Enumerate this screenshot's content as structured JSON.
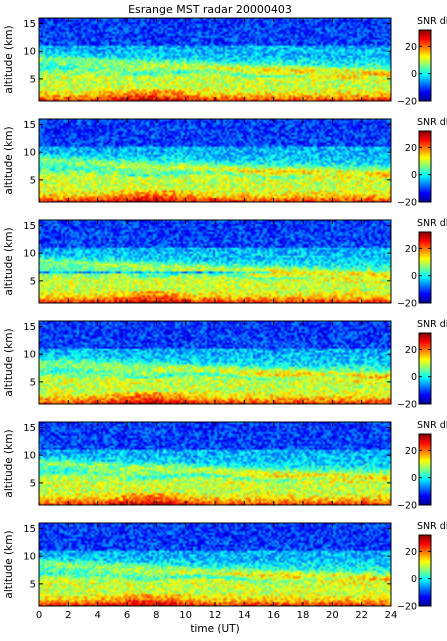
{
  "title": "Esrange MST radar 20000403",
  "colormap": [
    "#00008f",
    "#0000ff",
    "#0080ff",
    "#00ffff",
    "#80ff80",
    "#ffff00",
    "#ff8000",
    "#ff0000",
    "#800000"
  ],
  "chart_data": {
    "type": "heatmap",
    "title": "Esrange MST radar 20000403",
    "xlabel": "time (UT)",
    "xlim": [
      0,
      24
    ],
    "x_ticks": [
      "0",
      "2",
      "4",
      "6",
      "8",
      "10",
      "12",
      "14",
      "16",
      "18",
      "20",
      "22",
      "24"
    ],
    "panels": [
      {
        "ylabel": "altitude (km)",
        "ylim": [
          1,
          16
        ],
        "y_ticks": [
          "5",
          "10",
          "15"
        ],
        "colorbar": {
          "label": "SNR dB",
          "range": [
            -20,
            32
          ],
          "ticks": [
            "20",
            "0",
            "−20"
          ]
        }
      },
      {
        "ylabel": "altitude (km)",
        "ylim": [
          1,
          16
        ],
        "y_ticks": [
          "5",
          "10",
          "15"
        ],
        "colorbar": {
          "label": "SNR dB",
          "range": [
            -20,
            32
          ],
          "ticks": [
            "20",
            "0",
            "−20"
          ]
        }
      },
      {
        "ylabel": "altitude (km)",
        "ylim": [
          1,
          16
        ],
        "y_ticks": [
          "5",
          "10",
          "15"
        ],
        "colorbar": {
          "label": "SNR dB",
          "range": [
            -20,
            32
          ],
          "ticks": [
            "20",
            "0",
            "−20"
          ]
        }
      },
      {
        "ylabel": "altitude (km)",
        "ylim": [
          1,
          16
        ],
        "y_ticks": [
          "5",
          "10",
          "15"
        ],
        "colorbar": {
          "label": "SNR dB",
          "range": [
            -20,
            32
          ],
          "ticks": [
            "20",
            "0",
            "−20"
          ]
        }
      },
      {
        "ylabel": "altitude (km)",
        "ylim": [
          1,
          16
        ],
        "y_ticks": [
          "5",
          "10",
          "15"
        ],
        "colorbar": {
          "label": "SNR dB",
          "range": [
            -20,
            32
          ],
          "ticks": [
            "20",
            "0",
            "−20"
          ]
        }
      },
      {
        "ylabel": "altitude (km)",
        "ylim": [
          1,
          16
        ],
        "y_ticks": [
          "5",
          "10",
          "15"
        ],
        "colorbar": {
          "label": "SNR dB",
          "range": [
            -20,
            32
          ],
          "ticks": [
            "20",
            "0",
            "−20"
          ]
        }
      }
    ]
  }
}
